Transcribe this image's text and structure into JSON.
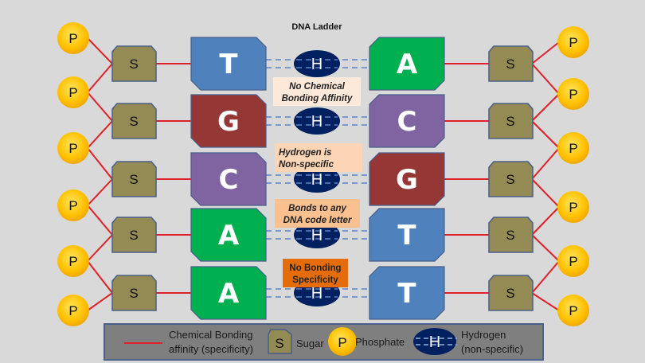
{
  "title": "DNA Ladder",
  "colors": {
    "T": "#4f81bd",
    "A": "#00b050",
    "G": "#953735",
    "C": "#8064a2",
    "sugar": "#948a54",
    "phosphate": "#ffc000",
    "hydrogen": "#002060",
    "bond": "#e0202a"
  },
  "pairs": [
    {
      "left": "T",
      "right": "A"
    },
    {
      "left": "G",
      "right": "C"
    },
    {
      "left": "C",
      "right": "G"
    },
    {
      "left": "A",
      "right": "T"
    },
    {
      "left": "A",
      "right": "T"
    }
  ],
  "labels": {
    "sugar": "S",
    "phosphate": "P",
    "hydrogen": "H"
  },
  "notes": [
    {
      "lines": [
        "No Chemical",
        "Bonding Affinity"
      ],
      "color": "#fde9d9"
    },
    {
      "lines": [
        "Hydrogen is",
        "Non-specific"
      ],
      "color": "#fbd5b5"
    },
    {
      "lines": [
        "Bonds to any",
        "DNA code letter"
      ],
      "color": "#fac090"
    },
    {
      "lines": [
        "No Bonding",
        "Specificity"
      ],
      "color": "#e46c0a"
    }
  ],
  "legend": {
    "bond_line1": "Chemical Bonding",
    "bond_line2": "affinity (specificity)",
    "sugar": "Sugar",
    "phosphate": "Phosphate",
    "hydrogen_line1": "Hydrogen",
    "hydrogen_line2": "(non-specific)"
  }
}
